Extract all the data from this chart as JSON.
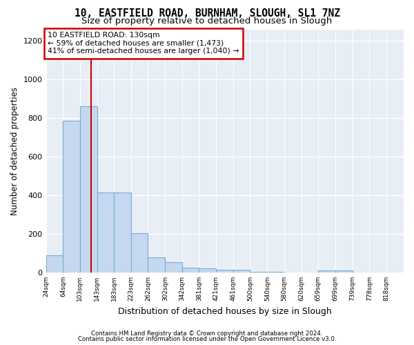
{
  "title1": "10, EASTFIELD ROAD, BURNHAM, SLOUGH, SL1 7NZ",
  "title2": "Size of property relative to detached houses in Slough",
  "xlabel": "Distribution of detached houses by size in Slough",
  "ylabel": "Number of detached properties",
  "annotation_line1": "10 EASTFIELD ROAD: 130sqm",
  "annotation_line2": "← 59% of detached houses are smaller (1,473)",
  "annotation_line3": "41% of semi-detached houses are larger (1,040) →",
  "footer1": "Contains HM Land Registry data © Crown copyright and database right 2024.",
  "footer2": "Contains public sector information licensed under the Open Government Licence v3.0.",
  "property_size": 130,
  "bar_edges": [
    24,
    64,
    103,
    143,
    183,
    223,
    262,
    302,
    342,
    381,
    421,
    461,
    500,
    540,
    580,
    620,
    659,
    699,
    739,
    778,
    818
  ],
  "bar_heights": [
    90,
    785,
    860,
    415,
    415,
    205,
    80,
    55,
    25,
    20,
    15,
    15,
    5,
    5,
    0,
    0,
    10,
    10,
    0,
    0,
    0
  ],
  "bar_color": "#c5d8ef",
  "bar_edge_color": "#7aadd4",
  "vline_color": "#cc0000",
  "vline_x": 130,
  "annotation_box_color": "#ffffff",
  "annotation_box_edge": "#cc0000",
  "ylim": [
    0,
    1260
  ],
  "yticks": [
    0,
    200,
    400,
    600,
    800,
    1000,
    1200
  ],
  "bg_color": "#e8eef6",
  "grid_color": "#ffffff",
  "title1_fontsize": 10.5,
  "title2_fontsize": 9.5,
  "fig_bg": "#ffffff"
}
